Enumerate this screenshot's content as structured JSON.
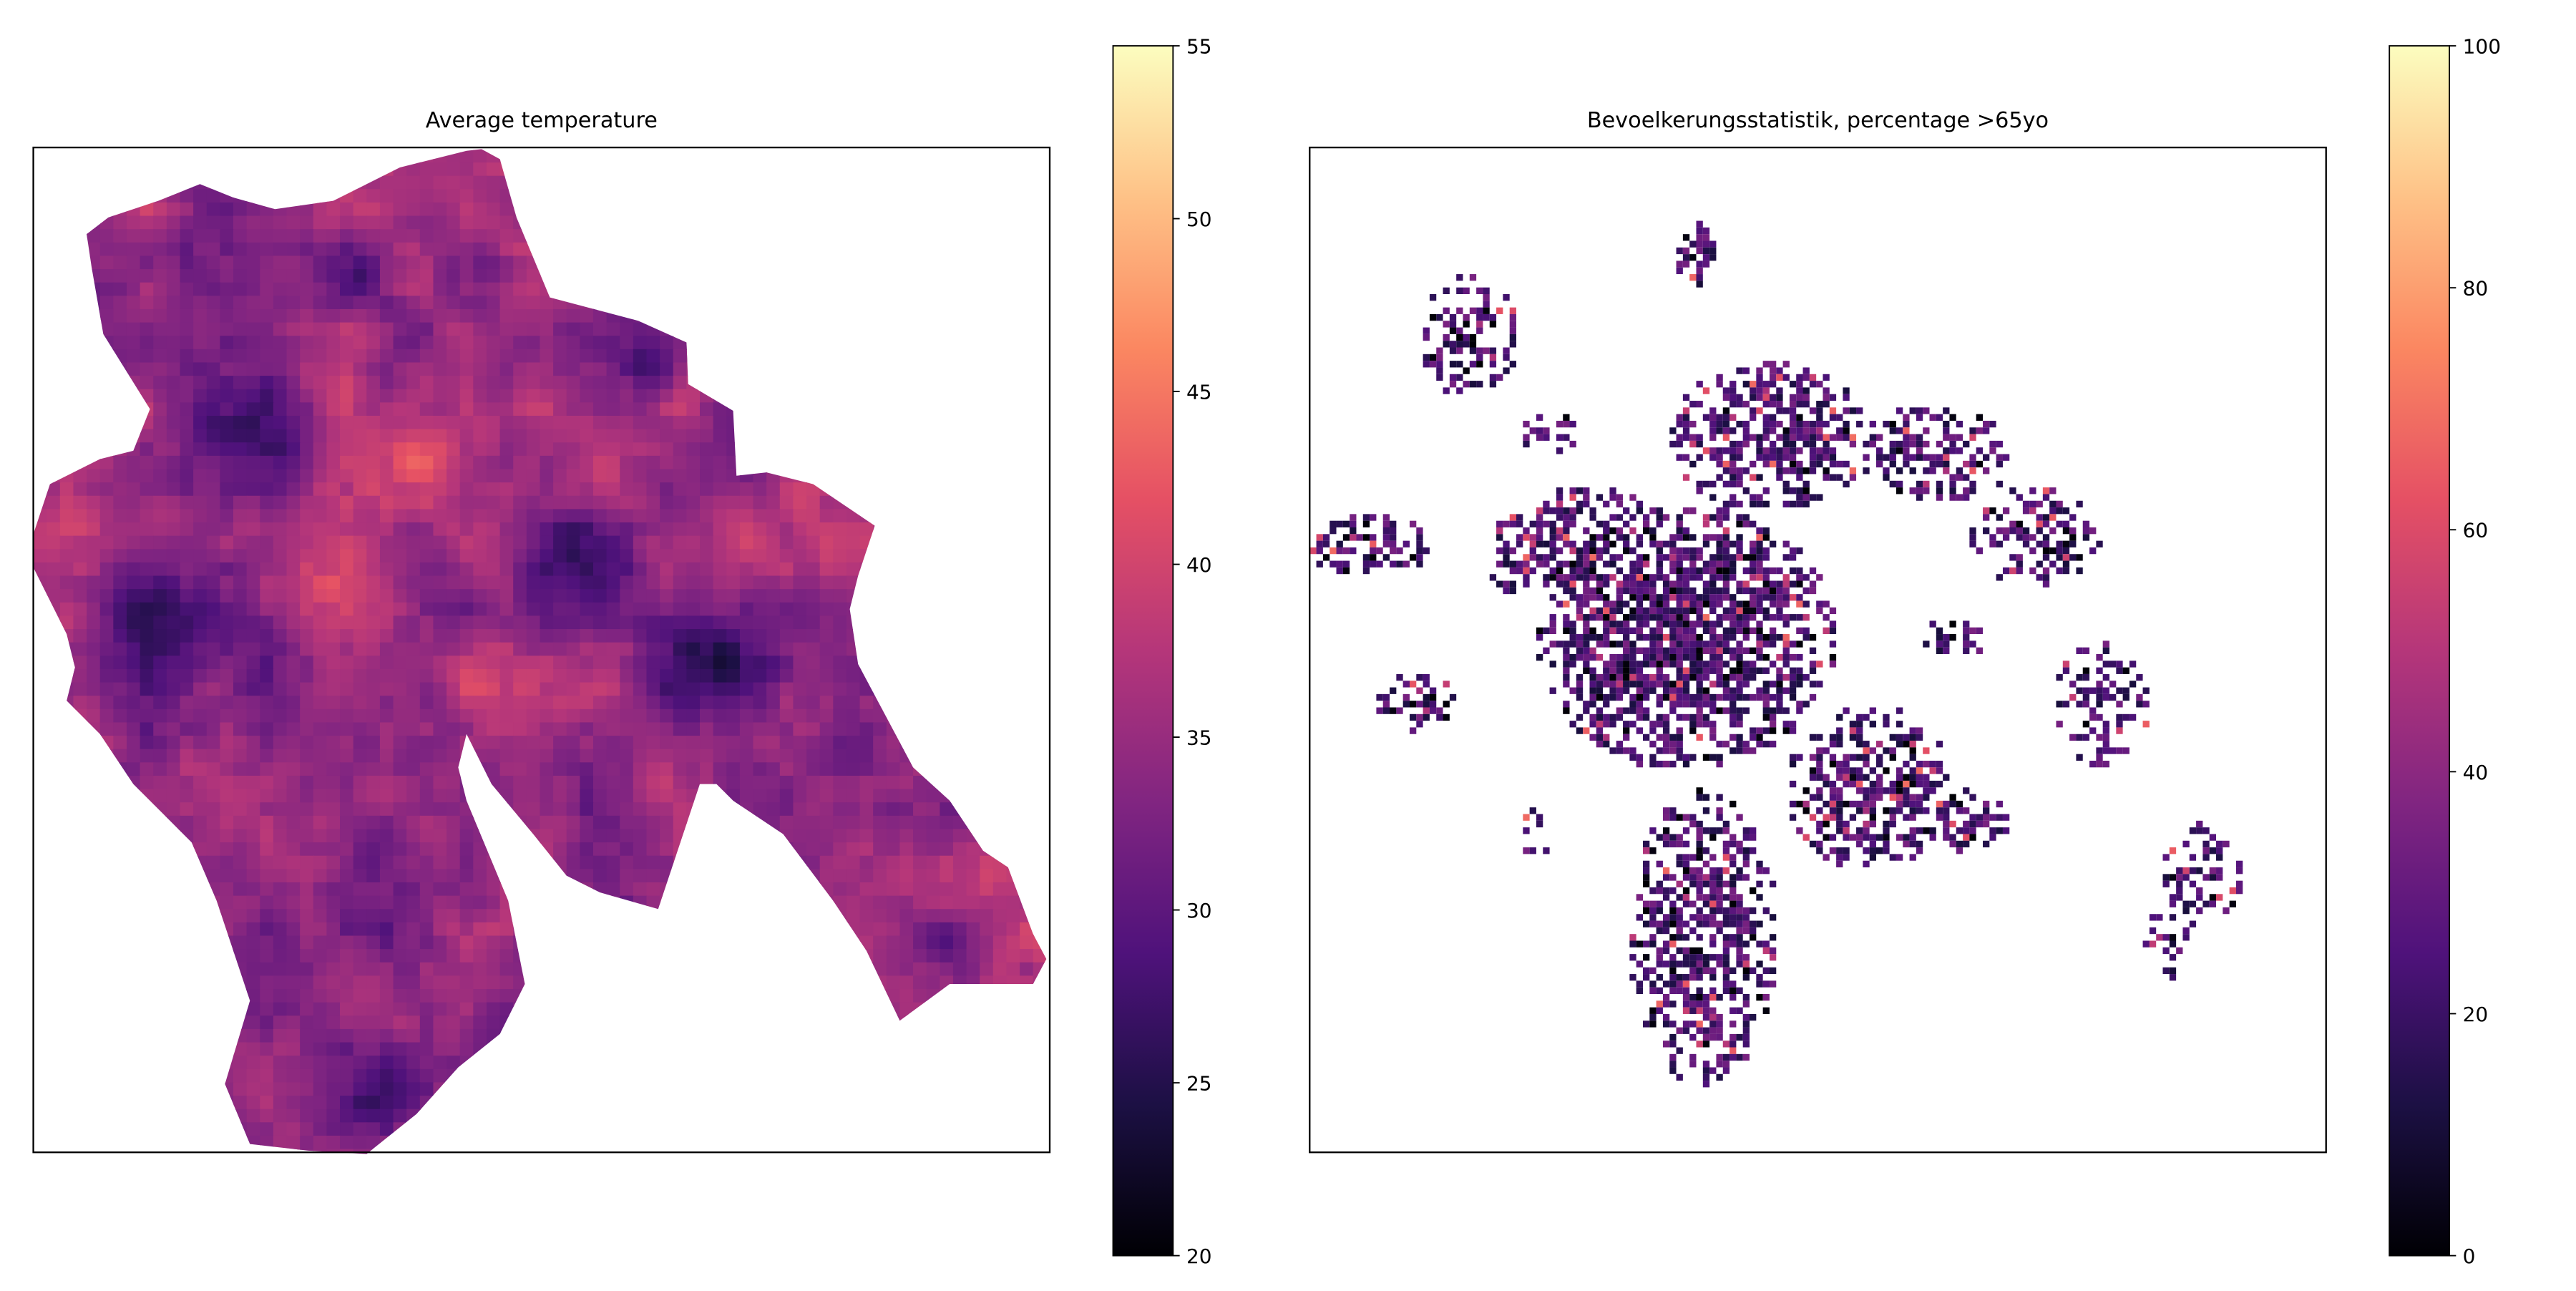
{
  "figure": {
    "colormap": "magma",
    "colormap_stops": [
      "#000004",
      "#1c1044",
      "#4f127b",
      "#812581",
      "#b5367a",
      "#e55064",
      "#fb8761",
      "#fec287",
      "#fcfdbf"
    ]
  },
  "chart_data": [
    {
      "type": "heatmap",
      "title": "Average temperature",
      "xlabel": "",
      "ylabel": "",
      "axis_ticks_visible": false,
      "grid": false,
      "colorbar": {
        "position": "right",
        "range": [
          20,
          55
        ],
        "ticks": [
          20,
          25,
          30,
          35,
          40,
          45,
          50,
          55
        ],
        "tick_labels": [
          "20",
          "25",
          "30",
          "35",
          "40",
          "45",
          "50",
          "55"
        ]
      },
      "observed_range": [
        22,
        52
      ],
      "typical_value": 35
    },
    {
      "type": "heatmap",
      "title": "Bevoelkerungsstatistik, percentage >65yo",
      "xlabel": "",
      "ylabel": "",
      "axis_ticks_visible": false,
      "grid": false,
      "colorbar": {
        "position": "right",
        "range": [
          0,
          100
        ],
        "ticks": [
          0,
          20,
          40,
          60,
          80,
          100
        ],
        "tick_labels": [
          "0",
          "20",
          "40",
          "60",
          "80",
          "100"
        ]
      },
      "observed_range": [
        0,
        70
      ],
      "typical_value": 20
    }
  ]
}
